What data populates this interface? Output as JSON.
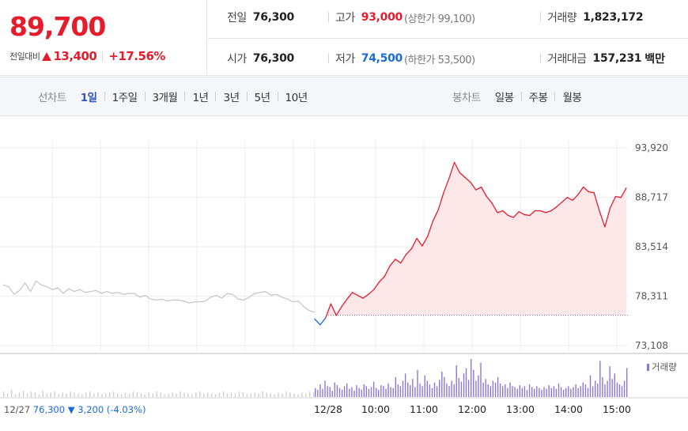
{
  "quote": {
    "price": "89,700",
    "change_label": "전일대비",
    "change_amount": "13,400",
    "change_percent": "+17.56%",
    "prev_close_label": "전일",
    "prev_close": "76,300",
    "high_label": "고가",
    "high": "93,000",
    "upper_limit": "(상한가 99,100)",
    "volume_label": "거래량",
    "volume": "1,823,172",
    "open_label": "시가",
    "open": "76,300",
    "low_label": "저가",
    "low": "74,500",
    "lower_limit": "(하한가 53,500)",
    "value_label": "거래대금",
    "value": "157,231",
    "value_unit": "백만"
  },
  "tabs": {
    "line_group_label": "선차트",
    "line_tabs": [
      "1일",
      "1주일",
      "3개월",
      "1년",
      "3년",
      "5년",
      "10년"
    ],
    "line_selected": 0,
    "candle_group_label": "봉차트",
    "candle_tabs": [
      "일봉",
      "주봉",
      "월봉"
    ]
  },
  "colors": {
    "up": "#e51c2c",
    "down": "#1a6ad8",
    "prev_day_line": "#c4c4c4",
    "area_fill": "#fde7e9",
    "volume_bar": "#8c77d9",
    "prev_volume_bar": "#cfcfcf",
    "selected_tab": "#2f53c6"
  },
  "chart_data": {
    "type": "line",
    "y_ticks": [
      "93,920",
      "88,717",
      "83,514",
      "78,311",
      "73,108"
    ],
    "y_tick_values": [
      93920,
      88717,
      83514,
      78311,
      73108
    ],
    "ylim": [
      73108,
      93920
    ],
    "x_ticks": [
      "12/28",
      "10:00",
      "11:00",
      "12:00",
      "13:00",
      "14:00",
      "15:00"
    ],
    "prev_close": 76300,
    "volume_label": "거래량",
    "prev_day_footer": {
      "date": "12/27",
      "close": "76,300",
      "change": "▼ 3,200",
      "change_pct": "(-4.03%)"
    },
    "series": [
      {
        "date": "12/27",
        "values": [
          79500,
          79300,
          78500,
          78900,
          79700,
          78800,
          79900,
          79500,
          79300,
          79000,
          79200,
          78600,
          79100,
          78800,
          79000,
          78700,
          78800,
          78900,
          78600,
          78800,
          78600,
          78700,
          78500,
          78600,
          78600,
          78200,
          78400,
          78000,
          77900,
          78000,
          77800,
          77900,
          77900,
          77800,
          77600,
          77700,
          77700,
          77800,
          78200,
          78400,
          78100,
          78600,
          78500,
          78000,
          77900,
          78200,
          78600,
          78700,
          78800,
          78400,
          78500,
          78200,
          78000,
          77700,
          77800,
          77200,
          76800,
          76600
        ]
      },
      {
        "date": "12/28",
        "values": [
          75900,
          75300,
          76000,
          77500,
          76300,
          77200,
          78000,
          78700,
          78400,
          78100,
          78500,
          79000,
          79800,
          80400,
          81500,
          82200,
          81800,
          82700,
          83300,
          84400,
          83600,
          84600,
          86200,
          87400,
          89200,
          90700,
          92400,
          91300,
          90800,
          90300,
          89500,
          89800,
          88800,
          88100,
          87100,
          87300,
          86800,
          86600,
          87200,
          86900,
          86800,
          87300,
          87300,
          87100,
          87300,
          87700,
          88200,
          88700,
          88400,
          89000,
          89800,
          89300,
          89200,
          87300,
          85600,
          87600,
          88800,
          88700,
          89700
        ]
      }
    ],
    "volume": {
      "prev_day": [
        6,
        4,
        8,
        3,
        5,
        7,
        4,
        6,
        5,
        3,
        7,
        4,
        5,
        6,
        3,
        5,
        4,
        6,
        5,
        4,
        3,
        5,
        6,
        4,
        5,
        3,
        4,
        5,
        6,
        4,
        3,
        5,
        4,
        6,
        5,
        4,
        3,
        5,
        4,
        6,
        5,
        3,
        4,
        5,
        4,
        6,
        5,
        4,
        3,
        5,
        6,
        4,
        5,
        4,
        3,
        5,
        6,
        4,
        5,
        4,
        6,
        5,
        3,
        4,
        5,
        4,
        6,
        5,
        4,
        3,
        5,
        4,
        6,
        5,
        4,
        3,
        5,
        4,
        6,
        5
      ],
      "today": [
        10,
        8,
        14,
        9,
        18,
        12,
        11,
        7,
        16,
        13,
        10,
        8,
        12,
        15,
        9,
        11,
        7,
        13,
        10,
        8,
        14,
        12,
        9,
        11,
        17,
        10,
        8,
        13,
        12,
        9,
        15,
        11,
        10,
        22,
        14,
        12,
        18,
        26,
        16,
        13,
        20,
        11,
        30,
        15,
        12,
        24,
        18,
        14,
        10,
        16,
        12,
        19,
        28,
        22,
        15,
        12,
        18,
        14,
        35,
        21,
        17,
        26,
        32,
        19,
        42,
        30,
        18,
        24,
        38,
        16,
        20,
        14,
        12,
        18,
        16,
        22,
        15,
        12,
        14,
        10,
        16,
        12,
        11,
        9,
        13,
        10,
        12,
        8,
        14,
        11,
        9,
        12,
        10,
        8,
        11,
        9,
        13,
        10,
        12,
        9,
        15,
        11,
        8,
        10,
        12,
        9,
        11,
        14,
        10,
        12,
        16,
        14,
        10,
        24,
        12,
        18,
        15,
        40,
        22,
        14,
        18,
        34,
        20,
        26,
        16,
        14,
        12,
        18,
        32
      ]
    }
  }
}
